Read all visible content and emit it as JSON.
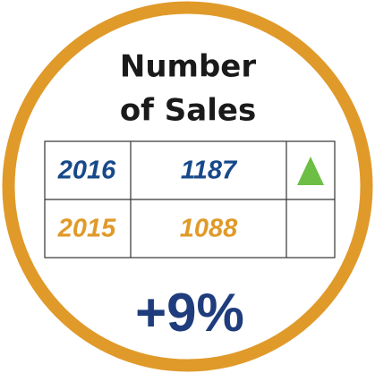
{
  "title": [
    "Number",
    "of Sales"
  ],
  "table": {
    "rows": [
      [
        "2016",
        "1187"
      ],
      [
        "2015",
        "1088"
      ]
    ]
  },
  "change": "+9%"
}
